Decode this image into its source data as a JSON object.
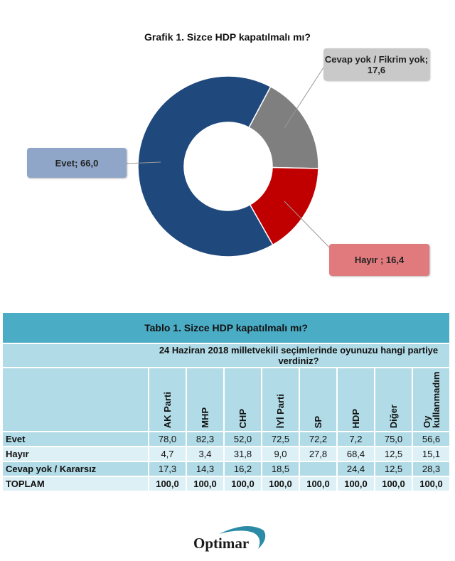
{
  "chart_data": {
    "type": "pie",
    "title": "Grafik 1. Sizce HDP kapatılmalı mı?",
    "donut": true,
    "slices": [
      {
        "label": "Cevap yok / Fikrim yok",
        "value": 17.6,
        "color": "#7f7f7f",
        "text": "Cevap yok / Fikrim yok; 17,6",
        "label_color": "#c9c9c9"
      },
      {
        "label": "Hayır",
        "value": 16.4,
        "color": "#c00000",
        "text": "Hayır ; 16,4",
        "label_color": "#e07a7c"
      },
      {
        "label": "Evet",
        "value": 66.0,
        "color": "#1f497d",
        "text": "Evet; 66,0",
        "label_color": "#8fa6c8"
      }
    ]
  },
  "table": {
    "title": "Tablo 1. Sizce HDP kapatılmalı mı?",
    "group_header": "24 Haziran 2018 milletvekili seçimlerinde oyunuzu hangi partiye verdiniz?",
    "columns": [
      "AK Parti",
      "MHP",
      "CHP",
      "İYİ Parti",
      "SP",
      "HDP",
      "Diğer",
      "Oy kullanmadım"
    ],
    "rows": [
      {
        "label": "Evet",
        "values": [
          "78,0",
          "82,3",
          "52,0",
          "72,5",
          "72,2",
          "7,2",
          "75,0",
          "56,6"
        ]
      },
      {
        "label": "Hayır",
        "values": [
          "4,7",
          "3,4",
          "31,8",
          "9,0",
          "27,8",
          "68,4",
          "12,5",
          "15,1"
        ]
      },
      {
        "label": "Cevap yok / Kararsız",
        "values": [
          "17,3",
          "14,3",
          "16,2",
          "18,5",
          "",
          "24,4",
          "12,5",
          "28,3"
        ]
      },
      {
        "label": "TOPLAM",
        "values": [
          "100,0",
          "100,0",
          "100,0",
          "100,0",
          "100,0",
          "100,0",
          "100,0",
          "100,0"
        ]
      }
    ]
  },
  "logo": {
    "text": "Optimar",
    "color": "#2b8ba6"
  }
}
